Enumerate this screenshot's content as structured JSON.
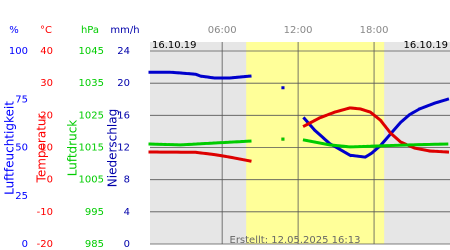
{
  "chart_data": {
    "type": "line",
    "date_left": "16.10.19",
    "date_right": "16.10.19",
    "footer": "Erstellt: 12.05.2025 16:13",
    "xlim": [
      0.3,
      24
    ],
    "xticks": [
      {
        "value": 6,
        "label": "06:00"
      },
      {
        "value": 12,
        "label": "12:00"
      },
      {
        "value": 18,
        "label": "18:00"
      }
    ],
    "daylight": [
      7.9,
      18.8
    ],
    "grid": true,
    "axes": [
      {
        "unit": "%",
        "title": "Luftfeuchtigkeit",
        "color": "#0000ff",
        "ylim": [
          0,
          100
        ],
        "yticks": [
          0,
          25,
          50,
          75,
          100
        ],
        "series": [
          {
            "name": "Luftfeuchtigkeit",
            "color": "#0000cc",
            "x": [
              0.3,
              1.9,
              3.9,
              4.3,
              5.4,
              6.6,
              8.2,
              null,
              10.8,
              null,
              12.5,
              13.3,
              14.5,
              15.3,
              16.1,
              17.3,
              17.8,
              18.5,
              19.3,
              20.1,
              20.8,
              21.6,
              22.8,
              23.8
            ],
            "values": [
              89,
              89,
              88,
              87,
              86,
              86,
              87,
              null,
              81,
              null,
              65,
              59,
              52,
              49,
              46,
              45,
              47,
              51,
              57,
              63,
              67,
              70,
              73,
              75
            ]
          }
        ]
      },
      {
        "unit": "°C",
        "title": "Temperatur",
        "color": "#ff0000",
        "ylim": [
          -20,
          40
        ],
        "yticks": [
          -20,
          -10,
          0,
          10,
          20,
          30,
          40
        ],
        "series": [
          {
            "name": "Temperatur",
            "color": "#dd0000",
            "x": [
              0.3,
              3.9,
              5.4,
              6.6,
              8.2,
              null,
              10.8,
              null,
              12.5,
              13.7,
              14.9,
              16.1,
              16.9,
              17.7,
              18.5,
              19.3,
              20.1,
              21.2,
              22.4,
              23.8
            ],
            "values": [
              8.6,
              8.5,
              7.8,
              7,
              5.8,
              null,
              12.6,
              null,
              16.7,
              19.2,
              21,
              22.3,
              22,
              21,
              18.5,
              14.5,
              11.7,
              9.8,
              8.9,
              8.6
            ]
          }
        ]
      },
      {
        "unit": "hPa",
        "title": "Luftdruck",
        "color": "#00cc00",
        "ylim": [
          985,
          1045
        ],
        "yticks": [
          985,
          995,
          1005,
          1015,
          1025,
          1035,
          1045
        ],
        "series": [
          {
            "name": "Luftdruck",
            "color": "#00cc00",
            "x": [
              0.3,
              2.7,
              5.4,
              8.2,
              null,
              10.8,
              null,
              12.5,
              14.5,
              16.1,
              18.5,
              20.8,
              23.8
            ],
            "values": [
              1016.1,
              1015.8,
              1016.4,
              1017,
              null,
              1017.6,
              null,
              1017.3,
              1015.8,
              1015.2,
              1015.5,
              1015.8,
              1016.1
            ]
          }
        ]
      },
      {
        "unit": "mm/h",
        "title": "Niederschlag",
        "color": "#0000aa",
        "ylim": [
          0,
          24
        ],
        "yticks": [
          0,
          4,
          8,
          12,
          16,
          20,
          24
        ],
        "series": []
      }
    ]
  }
}
